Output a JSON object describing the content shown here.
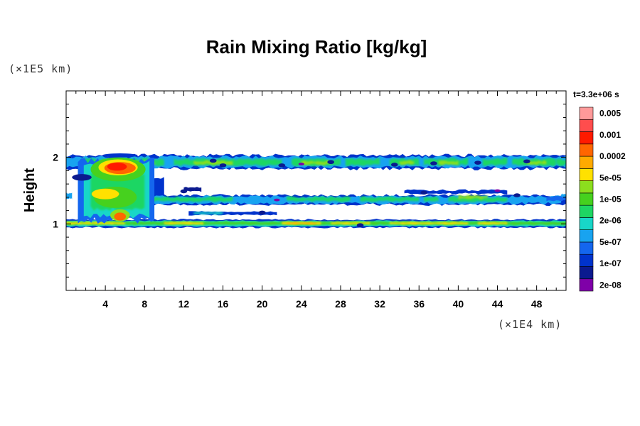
{
  "chart_data": {
    "type": "heatmap",
    "title": "Rain Mixing Ratio [kg/kg]",
    "ylabel": "Height",
    "x_unit_label": "(×1E4 km)",
    "y_unit_label": "(×1E5 km)",
    "time_label": "t=3.3e+06 s",
    "xlim": [
      0,
      51
    ],
    "ylim": [
      0,
      3
    ],
    "x_ticks": [
      4,
      8,
      12,
      16,
      20,
      24,
      28,
      32,
      36,
      40,
      44,
      48
    ],
    "y_ticks": [
      1,
      2
    ],
    "colorbar": {
      "colors": [
        "#7f00a8",
        "#0b1a8f",
        "#0033cc",
        "#1466ee",
        "#18a3f0",
        "#18d6c8",
        "#1ed663",
        "#46d11e",
        "#8cde1e",
        "#ffe100",
        "#ffaa00",
        "#ff6600",
        "#ff1a00",
        "#ff4d4d",
        "#ff9a9a"
      ],
      "labels": [
        "2e-08",
        "1e-07",
        "5e-07",
        "2e-06",
        "1e-05",
        "5e-05",
        "0.0002",
        "0.001",
        "0.005"
      ]
    },
    "regions": [
      {
        "band": "upper cloud layer",
        "x_range": [
          0,
          51
        ],
        "y_range": [
          1.85,
          2.02
        ],
        "max_level": "0.0002"
      },
      {
        "band": "middle cloud layer",
        "x_range": [
          0,
          51
        ],
        "y_range": [
          1.25,
          1.48
        ],
        "max_level": "5e-05"
      },
      {
        "band": "lower cloud layer",
        "x_range": [
          0,
          51
        ],
        "y_range": [
          0.93,
          1.08
        ],
        "max_level": "0.0002"
      },
      {
        "band": "convective core",
        "x_range": [
          1,
          9
        ],
        "y_range": [
          1.0,
          2.05
        ],
        "max_level": "0.001"
      }
    ]
  }
}
